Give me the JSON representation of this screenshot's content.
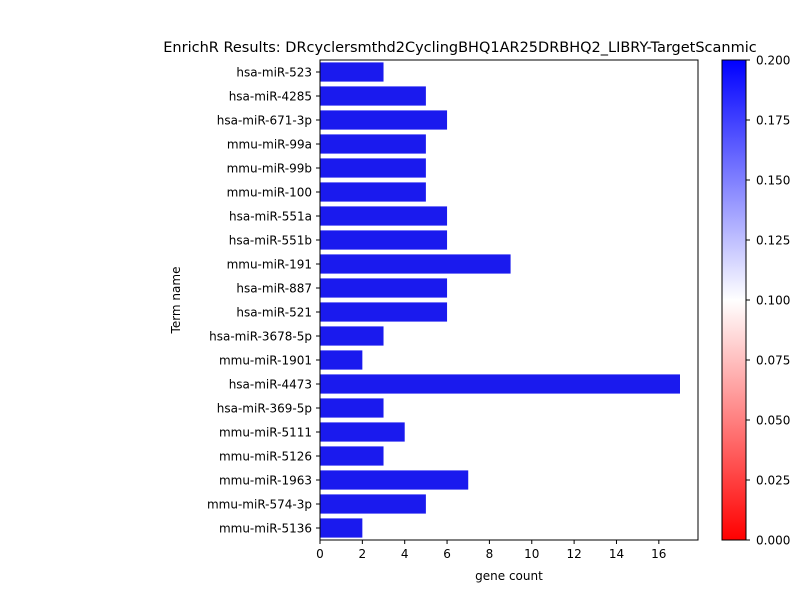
{
  "chart_data": {
    "type": "bar",
    "orientation": "horizontal",
    "title": "EnrichR Results: DRcyclersmthd2CyclingBHQ1AR25DRBHQ2_LIBRY-TargetScanmic",
    "xlabel": "gene count",
    "ylabel": "Term name",
    "categories": [
      "hsa-miR-523",
      "hsa-miR-4285",
      "hsa-miR-671-3p",
      "mmu-miR-99a",
      "mmu-miR-99b",
      "mmu-miR-100",
      "hsa-miR-551a",
      "hsa-miR-551b",
      "mmu-miR-191",
      "hsa-miR-887",
      "hsa-miR-521",
      "hsa-miR-3678-5p",
      "mmu-miR-1901",
      "hsa-miR-4473",
      "hsa-miR-369-5p",
      "mmu-miR-5111",
      "mmu-miR-5126",
      "mmu-miR-1963",
      "mmu-miR-574-3p",
      "mmu-miR-5136"
    ],
    "values": [
      3,
      5,
      6,
      5,
      5,
      5,
      6,
      6,
      9,
      6,
      6,
      3,
      2,
      17,
      3,
      4,
      3,
      7,
      5,
      2
    ],
    "xlim": [
      0,
      17.85
    ],
    "xticks": [
      0,
      2,
      4,
      6,
      8,
      10,
      12,
      14,
      16
    ],
    "bar_color": "#1a1aee",
    "colorbar": {
      "range": [
        0,
        0.2
      ],
      "ticks": [
        "0.000",
        "0.025",
        "0.050",
        "0.075",
        "0.100",
        "0.125",
        "0.150",
        "0.175",
        "0.200"
      ],
      "colors": [
        "#ff0000",
        "#ffffff",
        "#0000ff"
      ]
    },
    "grid": false
  }
}
